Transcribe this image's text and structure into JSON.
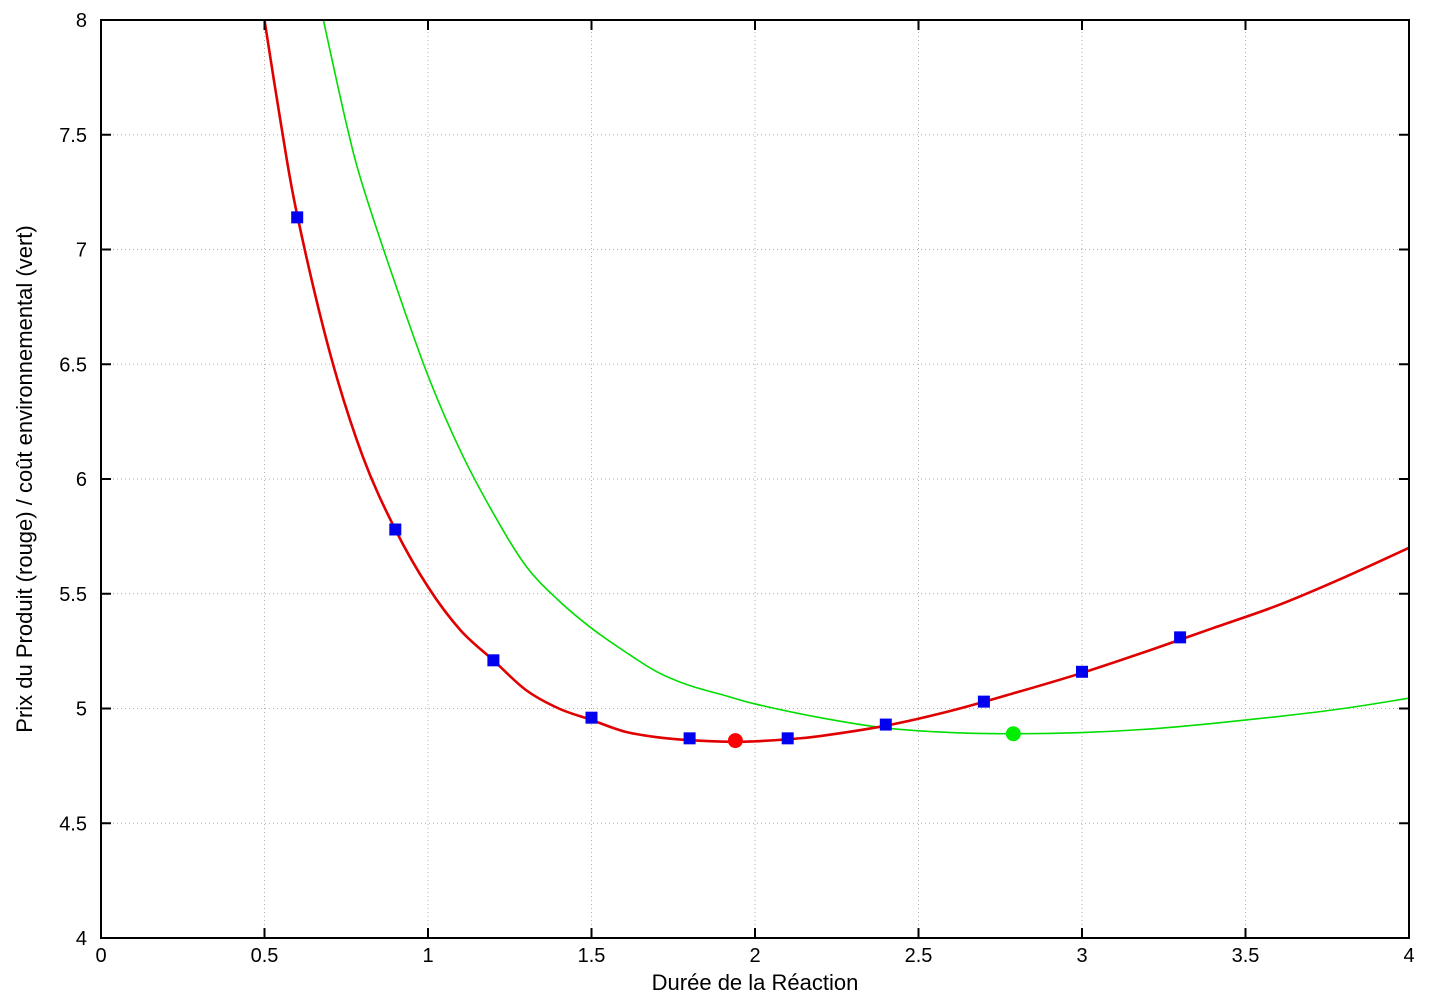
{
  "chart_data": {
    "type": "line",
    "title": "",
    "xlabel": "Durée de la Réaction",
    "ylabel": "Prix du Produit (rouge) / coût environnemental (vert)",
    "xlim": [
      0,
      4
    ],
    "ylim": [
      4,
      8
    ],
    "xticks": [
      0,
      0.5,
      1,
      1.5,
      2,
      2.5,
      3,
      3.5,
      4
    ],
    "xtick_labels": [
      "0",
      "0.5",
      "1",
      "1.5",
      "2",
      "2.5",
      "3",
      "3.5",
      "4"
    ],
    "yticks": [
      4,
      4.5,
      5,
      5.5,
      6,
      6.5,
      7,
      7.5,
      8
    ],
    "ytick_labels": [
      "4",
      "4.5",
      "5",
      "5.5",
      "6",
      "6.5",
      "7",
      "7.5",
      "8"
    ],
    "grid": true,
    "legend": "none",
    "series": [
      {
        "color": "#e00000",
        "style": "curve",
        "x": [
          0.5,
          0.55,
          0.6,
          0.7,
          0.8,
          0.9,
          1.0,
          1.1,
          1.2,
          1.3,
          1.4,
          1.5,
          1.6,
          1.7,
          1.8,
          1.93,
          2.0,
          2.1,
          2.2,
          2.4,
          2.6,
          2.8,
          3.0,
          3.2,
          3.4,
          3.6,
          3.8,
          4.0
        ],
        "y": [
          8.0,
          7.55,
          7.15,
          6.55,
          6.1,
          5.78,
          5.53,
          5.34,
          5.21,
          5.08,
          5.0,
          4.95,
          4.9,
          4.875,
          4.862,
          4.855,
          4.857,
          4.866,
          4.88,
          4.925,
          4.99,
          5.07,
          5.155,
          5.25,
          5.35,
          5.45,
          5.57,
          5.7
        ]
      },
      {
        "color": "#00dd00",
        "style": "curve",
        "x": [
          0.68,
          0.75,
          0.8,
          0.9,
          1.0,
          1.1,
          1.2,
          1.3,
          1.4,
          1.5,
          1.6,
          1.7,
          1.8,
          1.9,
          2.0,
          2.2,
          2.4,
          2.6,
          2.8,
          3.0,
          3.2,
          3.4,
          3.6,
          3.8,
          4.0
        ],
        "y": [
          8.0,
          7.55,
          7.28,
          6.85,
          6.45,
          6.12,
          5.85,
          5.62,
          5.47,
          5.35,
          5.25,
          5.16,
          5.1,
          5.06,
          5.02,
          4.96,
          4.915,
          4.895,
          4.89,
          4.895,
          4.91,
          4.935,
          4.965,
          5.0,
          5.045
        ]
      },
      {
        "color": "#0000ee",
        "style": "markers-square",
        "x": [
          0.6,
          0.9,
          1.2,
          1.5,
          1.8,
          2.1,
          2.4,
          2.7,
          3.0,
          3.3
        ],
        "y": [
          7.14,
          5.78,
          5.21,
          4.96,
          4.87,
          4.87,
          4.93,
          5.03,
          5.16,
          5.31
        ]
      },
      {
        "color": "#ff0000",
        "style": "marker-circle",
        "x": [
          1.94
        ],
        "y": [
          4.86
        ]
      },
      {
        "color": "#00ee00",
        "style": "marker-circle",
        "x": [
          2.79
        ],
        "y": [
          4.89
        ]
      }
    ]
  }
}
